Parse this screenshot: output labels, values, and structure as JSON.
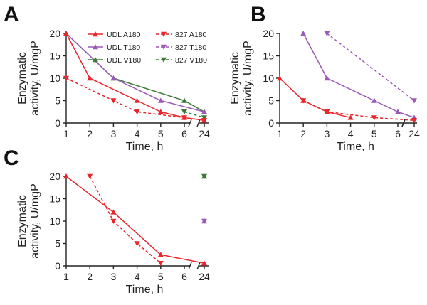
{
  "colors": {
    "UDL A180": "#e8262b",
    "827 A180": "#e8262b",
    "UDL T180": "#9b59b6",
    "827 T180": "#9b59b6",
    "UDL V180": "#3a7a35",
    "827 V180": "#3a7a35"
  },
  "chart_data": [
    {
      "panel": "A",
      "type": "line",
      "x_ticks": [
        "1",
        "2",
        "3",
        "4",
        "5",
        "6",
        "24"
      ],
      "y_ticks": [
        "0",
        "5",
        "10",
        "15",
        "20"
      ],
      "ylim": [
        0,
        20
      ],
      "xlabel": "Time, h",
      "ylabel": [
        "Enzymatic",
        "activity, U/mgP"
      ],
      "legend": [
        {
          "name": "UDL A180",
          "style": "solid",
          "marker": "triangle-up"
        },
        {
          "name": "827 A180",
          "style": "dashed",
          "marker": "triangle-down"
        },
        {
          "name": "UDL T180",
          "style": "solid",
          "marker": "triangle-up"
        },
        {
          "name": "827 T180",
          "style": "dashed",
          "marker": "triangle-down"
        },
        {
          "name": "UDL V180",
          "style": "solid",
          "marker": "triangle-up"
        },
        {
          "name": "827 V180",
          "style": "dashed",
          "marker": "triangle-down"
        }
      ],
      "series": [
        {
          "name": "UDL V180",
          "style": "solid",
          "marker": "triangle-up",
          "points": [
            [
              1,
              20
            ],
            [
              3,
              10
            ],
            [
              6,
              5
            ],
            [
              24,
              2.5
            ]
          ]
        },
        {
          "name": "UDL T180",
          "style": "solid",
          "marker": "triangle-up",
          "points": [
            [
              1,
              20
            ],
            [
              3,
              10
            ],
            [
              5,
              5
            ],
            [
              24,
              2.5
            ]
          ]
        },
        {
          "name": "827 V180",
          "style": "dashed",
          "marker": "triangle-down",
          "points": [
            [
              6,
              2.5
            ],
            [
              24,
              1.2
            ]
          ]
        },
        {
          "name": "UDL A180",
          "style": "solid",
          "marker": "triangle-up",
          "points": [
            [
              1,
              20
            ],
            [
              2,
              10
            ],
            [
              4,
              5
            ],
            [
              5,
              2.5
            ],
            [
              6,
              1.2
            ],
            [
              24,
              0.6
            ]
          ]
        },
        {
          "name": "827 A180",
          "style": "dashed",
          "marker": "triangle-down",
          "points": [
            [
              1,
              10
            ],
            [
              3,
              5
            ],
            [
              4,
              2.5
            ],
            [
              6,
              1.2
            ],
            [
              24,
              0.6
            ]
          ]
        }
      ]
    },
    {
      "panel": "B",
      "type": "line",
      "x_ticks": [
        "1",
        "2",
        "3",
        "4",
        "5",
        "6",
        "24"
      ],
      "y_ticks": [
        "0",
        "5",
        "10",
        "15",
        "20"
      ],
      "ylim": [
        0,
        20
      ],
      "xlabel": "Time, h",
      "ylabel": [
        "Enzymatic",
        "activity, U/mgP"
      ],
      "series": [
        {
          "name": "827 T180",
          "style": "dashed",
          "marker": "triangle-down",
          "points": [
            [
              3,
              20
            ],
            [
              24,
              5
            ]
          ]
        },
        {
          "name": "UDL T180",
          "style": "solid",
          "marker": "triangle-up",
          "points": [
            [
              2,
              20
            ],
            [
              3,
              10
            ],
            [
              5,
              5
            ],
            [
              6,
              2.5
            ],
            [
              24,
              1.2
            ]
          ]
        },
        {
          "name": "UDL A180",
          "style": "solid",
          "marker": "triangle-up",
          "points": [
            [
              1,
              10
            ],
            [
              2,
              5
            ],
            [
              3,
              2.5
            ],
            [
              4,
              1.2
            ]
          ]
        },
        {
          "name": "827 A180",
          "style": "dashed",
          "marker": "triangle-down",
          "points": [
            [
              2,
              5
            ],
            [
              3,
              2.5
            ],
            [
              5,
              1.2
            ],
            [
              24,
              0.6
            ]
          ]
        }
      ]
    },
    {
      "panel": "C",
      "type": "line",
      "x_ticks": [
        "1",
        "2",
        "3",
        "4",
        "5",
        "6",
        "24"
      ],
      "y_ticks": [
        "0",
        "5",
        "10",
        "15",
        "20"
      ],
      "ylim": [
        0,
        20
      ],
      "xlabel": "Time, h",
      "ylabel": [
        "Enzymatic",
        "activity, U/mgP"
      ],
      "series": [
        {
          "name": "UDL A180",
          "style": "solid",
          "marker": "triangle-up",
          "points": [
            [
              1,
              20
            ],
            [
              3,
              12
            ],
            [
              5,
              2.5
            ],
            [
              24,
              0.6
            ]
          ]
        },
        {
          "name": "827 A180",
          "style": "dashed",
          "marker": "triangle-down",
          "points": [
            [
              2,
              20
            ],
            [
              3,
              10
            ],
            [
              4,
              5
            ],
            [
              5,
              0.6
            ]
          ]
        },
        {
          "name": "UDL V180",
          "style": "solid",
          "marker": "triangle-up",
          "points": [
            [
              24,
              20
            ]
          ]
        },
        {
          "name": "827 V180",
          "style": "dashed",
          "marker": "triangle-down",
          "points": [
            [
              24,
              20
            ]
          ]
        },
        {
          "name": "UDL T180",
          "style": "solid",
          "marker": "triangle-up",
          "points": [
            [
              24,
              10
            ]
          ]
        },
        {
          "name": "827 T180",
          "style": "dashed",
          "marker": "triangle-down",
          "points": [
            [
              24,
              10
            ]
          ]
        }
      ]
    }
  ]
}
